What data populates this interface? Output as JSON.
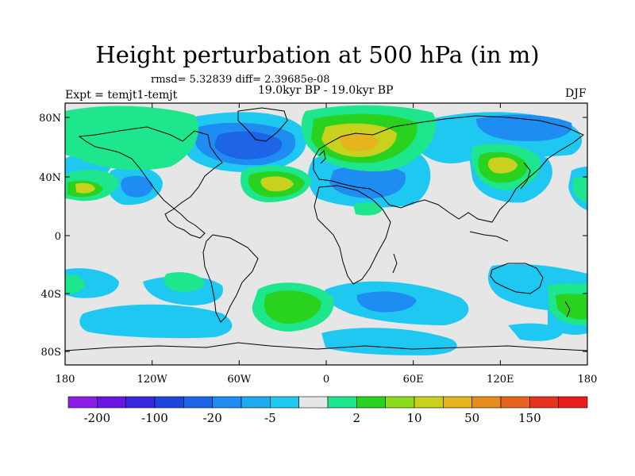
{
  "title": "Height perturbation at 500 hPa (in m)",
  "stats": "rmsd= 5.32839 diff= 2.39685e-08",
  "experiment": "Expt = temjt1-temjt",
  "period": "19.0kyr BP - 19.0kyr BP",
  "season": "DJF",
  "axes": {
    "x_ticks": [
      "180",
      "120W",
      "60W",
      "0",
      "60E",
      "120E",
      "180"
    ],
    "y_ticks": [
      "80N",
      "40N",
      "0",
      "40S",
      "80S"
    ]
  },
  "colorbar": {
    "colors": [
      "#8c1ee6",
      "#6a14e0",
      "#3c28dc",
      "#1e46dc",
      "#1e64e6",
      "#1e8cf0",
      "#1eaaf0",
      "#1ec8f0",
      "#e6e6e6",
      "#1ee68c",
      "#28d21e",
      "#8cdc1e",
      "#c8d21e",
      "#e6b41e",
      "#e68c1e",
      "#e6641e",
      "#e6321e",
      "#e61e1e"
    ],
    "labels": [
      "-200",
      "-100",
      "-20",
      "-5",
      "2",
      "10",
      "50",
      "150"
    ]
  },
  "field_colors": {
    "background": "#e6e6e6",
    "neg_light": "#1ec8f0",
    "neg_mid": "#1e8cf0",
    "neg_strong": "#1e64e6",
    "pos_light": "#1ee68c",
    "pos_mid": "#28d21e",
    "pos_strong": "#c8d21e",
    "pos_peak": "#e6b41e",
    "coast": "#000000"
  }
}
